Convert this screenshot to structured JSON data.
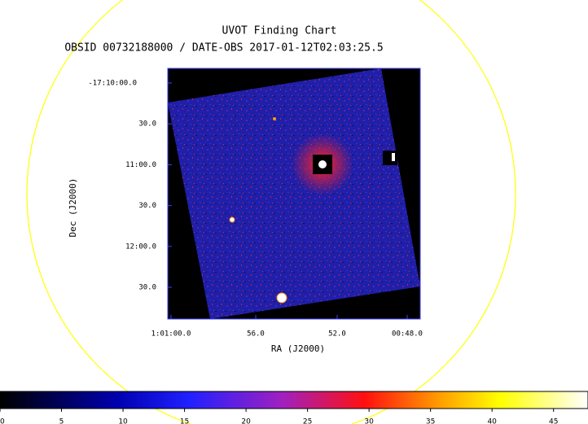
{
  "title": "UVOT Finding Chart",
  "subtitle": "OBSID 00732188000 / DATE-OBS 2017-01-12T02:03:25.5",
  "x_axis": {
    "label": "RA (J2000)",
    "ticks": [
      "1:01:00.0",
      "56.0",
      "52.0",
      "00:48.0"
    ]
  },
  "y_axis": {
    "label": "Dec (J2000)",
    "ticks": [
      "-17:10:00.0",
      "30.0",
      "11:00.0",
      "30.0",
      "12:00.0",
      "30.0"
    ]
  },
  "colorbar": {
    "lim": [
      0,
      47.8
    ],
    "ticks": [
      0,
      5,
      10,
      15,
      20,
      25,
      30,
      35,
      40,
      45
    ]
  }
}
